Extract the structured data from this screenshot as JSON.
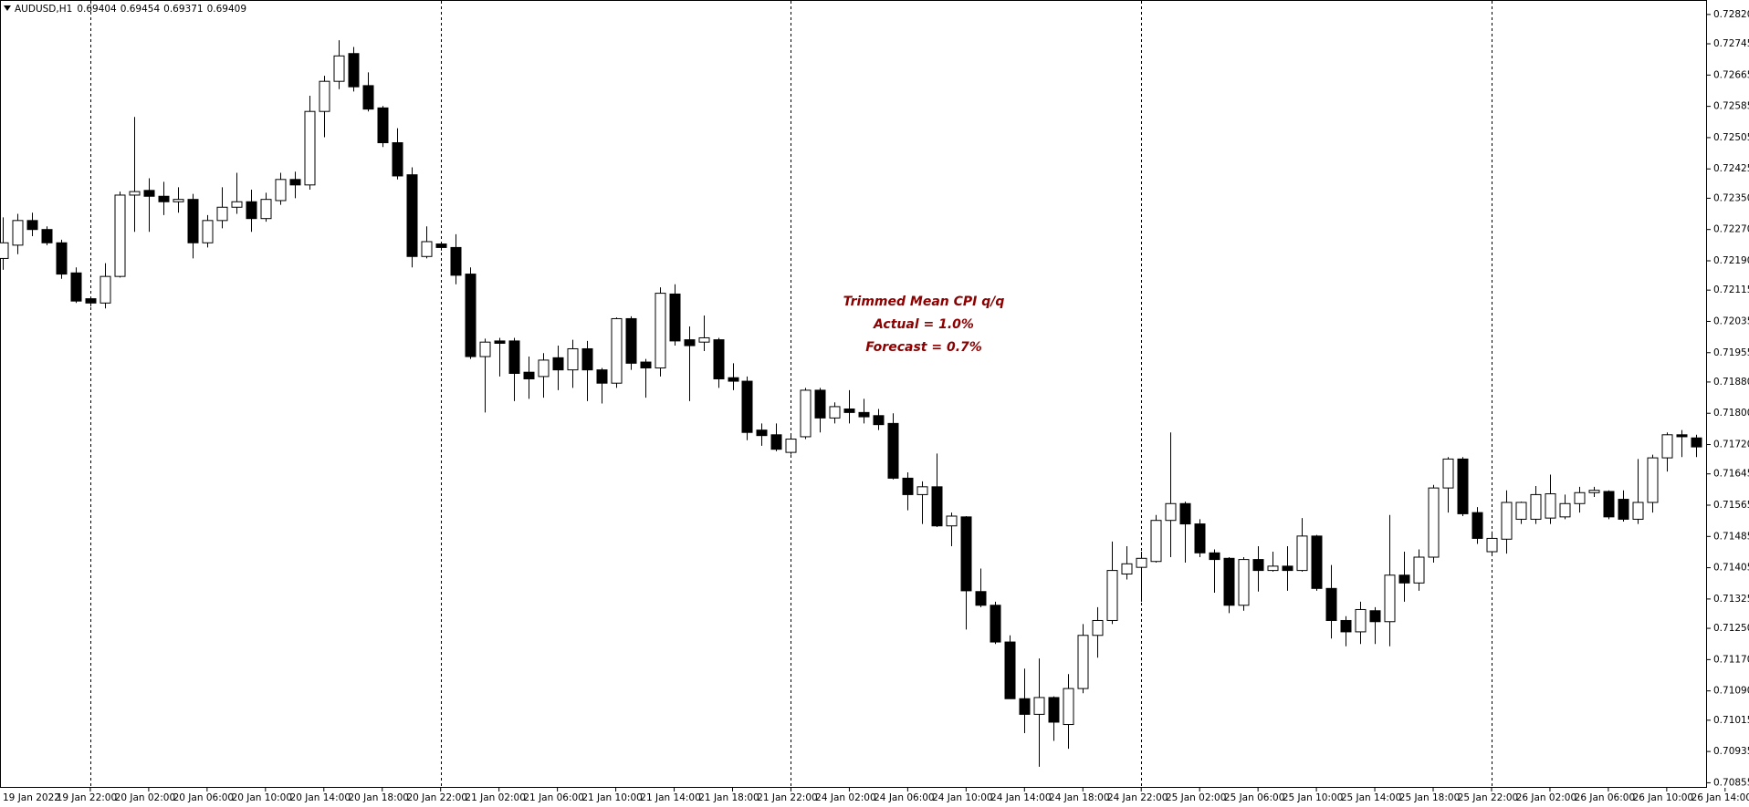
{
  "chart_data": {
    "type": "candlestick",
    "title": "AUDUSD,H1",
    "ohlc_header": [
      0.69404,
      0.69454,
      0.69371,
      0.69409
    ],
    "annotations": [
      "Trimmed Mean CPI q/q",
      "Actual = 1.0%",
      "Forecast = 0.7%"
    ],
    "up_color": "#ffffff",
    "down_color": "#000000",
    "x_labels": [
      "19 Jan 2022",
      "19 Jan 22:00",
      "20 Jan 02:00",
      "20 Jan 06:00",
      "20 Jan 10:00",
      "20 Jan 14:00",
      "20 Jan 18:00",
      "20 Jan 22:00",
      "21 Jan 02:00",
      "21 Jan 06:00",
      "21 Jan 10:00",
      "21 Jan 14:00",
      "21 Jan 18:00",
      "21 Jan 22:00",
      "24 Jan 02:00",
      "24 Jan 06:00",
      "24 Jan 10:00",
      "24 Jan 14:00",
      "24 Jan 18:00",
      "24 Jan 22:00",
      "25 Jan 02:00",
      "25 Jan 06:00",
      "25 Jan 10:00",
      "25 Jan 14:00",
      "25 Jan 18:00",
      "25 Jan 22:00",
      "26 Jan 02:00",
      "26 Jan 06:00",
      "26 Jan 10:00",
      "26 Jan 14:00"
    ],
    "ylim": [
      0.70842,
      0.72857
    ],
    "yticks": [
      {
        "value": 0.7282,
        "label": "0.72820"
      },
      0.72745,
      0.72665,
      0.72585,
      0.72505,
      0.72425,
      {
        "value": 0.7235,
        "label": "0.72350"
      },
      {
        "value": 0.7227,
        "label": "0.72270"
      },
      {
        "value": 0.7219,
        "label": "0.72190"
      },
      0.72115,
      0.72035,
      0.71955,
      {
        "value": 0.7188,
        "label": "0.71880"
      },
      {
        "value": 0.718,
        "label": "0.71800"
      },
      {
        "value": 0.7172,
        "label": "0.71720"
      },
      0.71645,
      0.71565,
      0.71485,
      0.71405,
      0.71325,
      {
        "value": 0.7125,
        "label": "0.71250"
      },
      {
        "value": 0.7117,
        "label": "0.71170"
      },
      {
        "value": 0.7109,
        "label": "0.71090"
      },
      0.71015,
      0.70935,
      0.70855
    ],
    "open": [
      0.72196,
      0.7223,
      0.72293,
      0.7227,
      0.72236,
      0.72159,
      0.72093,
      0.72082,
      0.7215,
      0.72358,
      0.7237,
      0.72355,
      0.72341,
      0.72347,
      0.72236,
      0.72293,
      0.72327,
      0.72341,
      0.72298,
      0.72344,
      0.72398,
      0.72384,
      0.72572,
      0.72649,
      0.7272,
      0.72638,
      0.72581,
      0.72492,
      0.7241,
      0.72201,
      0.72233,
      0.72224,
      0.72156,
      0.71945,
      0.71985,
      0.71985,
      0.71905,
      0.71894,
      0.71942,
      0.71911,
      0.71965,
      0.71911,
      0.71877,
      0.72042,
      0.71931,
      0.71916,
      0.72105,
      0.71988,
      0.71982,
      0.71988,
      0.71891,
      0.71882,
      0.71757,
      0.71745,
      0.717,
      0.7174,
      0.71859,
      0.71788,
      0.71811,
      0.71802,
      0.71794,
      0.71774,
      0.71634,
      0.71592,
      0.71612,
      0.71512,
      0.71535,
      0.71344,
      0.71309,
      0.71215,
      0.7107,
      0.7103,
      0.71073,
      0.71004,
      0.71096,
      0.71232,
      0.7127,
      0.71389,
      0.71406,
      0.71421,
      0.71526,
      0.71569,
      0.71517,
      0.71443,
      0.71429,
      0.71309,
      0.71426,
      0.71398,
      0.71409,
      0.71398,
      0.71486,
      0.71352,
      0.7127,
      0.71241,
      0.71295,
      0.71267,
      0.71386,
      0.71366,
      0.71432,
      0.71609,
      0.71683,
      0.71546,
      0.71446,
      0.71478,
      0.71529,
      0.71529,
      0.71532,
      0.71535,
      0.71569,
      0.71597,
      0.716,
      0.7158,
      0.71529,
      0.71572,
      0.71686,
      0.71745,
      0.71737
    ],
    "high": [
      0.72301,
      0.7231,
      0.72313,
      0.72278,
      0.72244,
      0.72173,
      0.72099,
      0.72184,
      0.72367,
      0.72558,
      0.72401,
      0.72392,
      0.72378,
      0.72361,
      0.72307,
      0.72378,
      0.72415,
      0.72372,
      0.72364,
      0.72415,
      0.72418,
      0.72612,
      0.72663,
      0.72754,
      0.72737,
      0.72672,
      0.72586,
      0.72529,
      0.72429,
      0.72278,
      0.72239,
      0.72258,
      0.72173,
      0.71991,
      0.71993,
      0.71993,
      0.71945,
      0.71954,
      0.71973,
      0.71988,
      0.71985,
      0.71916,
      0.72045,
      0.72048,
      0.71939,
      0.72122,
      0.7213,
      0.72022,
      0.7205,
      0.71993,
      0.71928,
      0.71894,
      0.71774,
      0.71774,
      0.71748,
      0.71865,
      0.71865,
      0.71828,
      0.71859,
      0.71837,
      0.71811,
      0.718,
      0.71649,
      0.71626,
      0.71697,
      0.71546,
      0.71537,
      0.71403,
      0.71318,
      0.71232,
      0.71147,
      0.71173,
      0.71076,
      0.71133,
      0.71261,
      0.71304,
      0.71472,
      0.7146,
      0.71446,
      0.7154,
      0.71751,
      0.71574,
      0.71529,
      0.71452,
      0.71432,
      0.71432,
      0.7146,
      0.71446,
      0.7146,
      0.71532,
      0.71489,
      0.71412,
      0.71281,
      0.71318,
      0.71304,
      0.7154,
      0.71446,
      0.71452,
      0.71617,
      0.71688,
      0.71688,
      0.7156,
      0.71498,
      0.71603,
      0.71574,
      0.71614,
      0.71643,
      0.71592,
      0.71612,
      0.71612,
      0.71603,
      0.71603,
      0.71683,
      0.71694,
      0.71751,
      0.71757,
      0.71745
    ],
    "low": [
      0.72167,
      0.72207,
      0.72253,
      0.7223,
      0.72144,
      0.72082,
      0.72073,
      0.72068,
      0.72147,
      0.72264,
      0.72264,
      0.72307,
      0.72313,
      0.72196,
      0.72224,
      0.72273,
      0.7231,
      0.72264,
      0.7229,
      0.72333,
      0.7235,
      0.72372,
      0.72506,
      0.72629,
      0.72623,
      0.72572,
      0.72481,
      0.72398,
      0.72173,
      0.72196,
      0.72216,
      0.7213,
      0.71939,
      0.71802,
      0.71894,
      0.71831,
      0.71837,
      0.7184,
      0.71859,
      0.71865,
      0.71831,
      0.71825,
      0.71865,
      0.71911,
      0.7184,
      0.71894,
      0.71973,
      0.71831,
      0.71959,
      0.71865,
      0.71859,
      0.71731,
      0.71717,
      0.71703,
      0.71694,
      0.71734,
      0.71751,
      0.71774,
      0.71774,
      0.71774,
      0.71757,
      0.71631,
      0.71552,
      0.71517,
      0.71509,
      0.7146,
      0.71247,
      0.71304,
      0.7121,
      0.7107,
      0.70982,
      0.70896,
      0.70962,
      0.70942,
      0.71084,
      0.71175,
      0.71261,
      0.71375,
      0.71318,
      0.71418,
      0.71432,
      0.71418,
      0.71432,
      0.71341,
      0.71289,
      0.71295,
      0.71344,
      0.71395,
      0.71346,
      0.71395,
      0.71346,
      0.71224,
      0.71204,
      0.7121,
      0.7121,
      0.71204,
      0.71318,
      0.71346,
      0.71418,
      0.71546,
      0.71537,
      0.71466,
      0.71441,
      0.71441,
      0.71517,
      0.71517,
      0.71517,
      0.71529,
      0.71546,
      0.71586,
      0.71529,
      0.71523,
      0.71517,
      0.71546,
      0.71651,
      0.71688,
      0.71688
    ],
    "close": [
      0.72236,
      0.72293,
      0.7227,
      0.72236,
      0.72156,
      0.72087,
      0.72082,
      0.7215,
      0.72358,
      0.72367,
      0.72355,
      0.72341,
      0.72347,
      0.72236,
      0.72293,
      0.72327,
      0.72341,
      0.72298,
      0.72347,
      0.72398,
      0.72384,
      0.72572,
      0.72649,
      0.72714,
      0.72635,
      0.72578,
      0.72492,
      0.72407,
      0.72201,
      0.72239,
      0.72224,
      0.72153,
      0.71945,
      0.71982,
      0.71979,
      0.71902,
      0.71888,
      0.71936,
      0.71911,
      0.71965,
      0.71911,
      0.71877,
      0.72042,
      0.71928,
      0.71916,
      0.72107,
      0.71985,
      0.71973,
      0.71993,
      0.71888,
      0.71882,
      0.71751,
      0.71743,
      0.71708,
      0.71734,
      0.71859,
      0.71788,
      0.71817,
      0.71802,
      0.71791,
      0.71771,
      0.71634,
      0.71592,
      0.71612,
      0.71512,
      0.71537,
      0.71346,
      0.71309,
      0.71215,
      0.7107,
      0.7103,
      0.71073,
      0.7101,
      0.71096,
      0.71232,
      0.7127,
      0.71398,
      0.71415,
      0.71429,
      0.71526,
      0.71569,
      0.71517,
      0.71443,
      0.71426,
      0.71309,
      0.71426,
      0.71398,
      0.71409,
      0.71398,
      0.71486,
      0.71352,
      0.7127,
      0.71241,
      0.71298,
      0.71267,
      0.71386,
      0.71366,
      0.71432,
      0.71609,
      0.71683,
      0.71543,
      0.7148,
      0.7148,
      0.71572,
      0.71572,
      0.71592,
      0.71594,
      0.71569,
      0.71597,
      0.71603,
      0.71535,
      0.71529,
      0.71572,
      0.71686,
      0.71745,
      0.7174,
      0.71714
    ]
  }
}
